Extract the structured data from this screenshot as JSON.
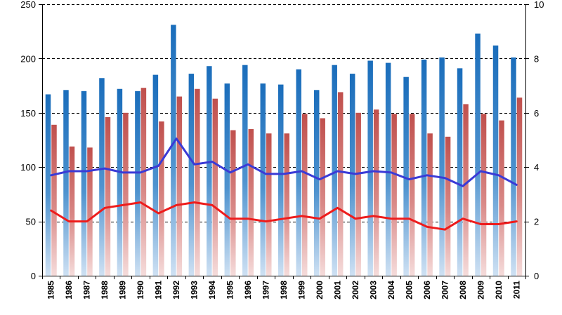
{
  "chart_data": {
    "type": "bar",
    "title": "",
    "xlabel": "",
    "ylabel": "",
    "ylabel_right": "",
    "grid": true,
    "categories": [
      "1985",
      "1986",
      "1987",
      "1988",
      "1989",
      "1990",
      "1991",
      "1992",
      "1993",
      "1994",
      "1995",
      "1996",
      "1997",
      "1998",
      "1999",
      "2000",
      "2001",
      "2002",
      "2003",
      "2004",
      "2005",
      "2006",
      "2007",
      "2008",
      "2009",
      "2010",
      "2011"
    ],
    "ylim": [
      0,
      250
    ],
    "ylim_right": [
      0,
      10
    ],
    "yticks": [
      "0",
      "50",
      "100",
      "150",
      "200",
      "250"
    ],
    "yticks_right": [
      "0",
      "2",
      "4",
      "6",
      "8",
      "10"
    ],
    "series": [
      {
        "name": "Blue bars",
        "type": "bar",
        "axis": "left",
        "color": "#1f73bd",
        "values": [
          167,
          171,
          170,
          182,
          172,
          170,
          185,
          231,
          186,
          193,
          177,
          194,
          177,
          176,
          190,
          171,
          194,
          186,
          198,
          196,
          183,
          199,
          201,
          191,
          223,
          212,
          201
        ]
      },
      {
        "name": "Red bars",
        "type": "bar",
        "axis": "left",
        "color": "#c0504d",
        "values": [
          139,
          119,
          118,
          146,
          150,
          173,
          142,
          165,
          172,
          163,
          134,
          135,
          131,
          131,
          149,
          145,
          169,
          150,
          153,
          149,
          149,
          131,
          128,
          158,
          149,
          143,
          164
        ]
      },
      {
        "name": "Blue line",
        "type": "line",
        "axis": "right",
        "color": "#3a3ad6",
        "values": [
          3.7,
          3.85,
          3.85,
          3.95,
          3.8,
          3.8,
          4.05,
          5.05,
          4.1,
          4.2,
          3.8,
          4.1,
          3.75,
          3.75,
          3.85,
          3.55,
          3.85,
          3.75,
          3.85,
          3.8,
          3.55,
          3.7,
          3.6,
          3.3,
          3.85,
          3.7,
          3.35
        ]
      },
      {
        "name": "Red line",
        "type": "line",
        "axis": "right",
        "color": "#ee1c1c",
        "values": [
          2.4,
          2.0,
          2.0,
          2.5,
          2.6,
          2.7,
          2.3,
          2.6,
          2.7,
          2.6,
          2.1,
          2.1,
          2.0,
          2.1,
          2.2,
          2.1,
          2.5,
          2.1,
          2.2,
          2.1,
          2.1,
          1.8,
          1.7,
          2.1,
          1.9,
          1.9,
          2.0
        ]
      }
    ]
  }
}
